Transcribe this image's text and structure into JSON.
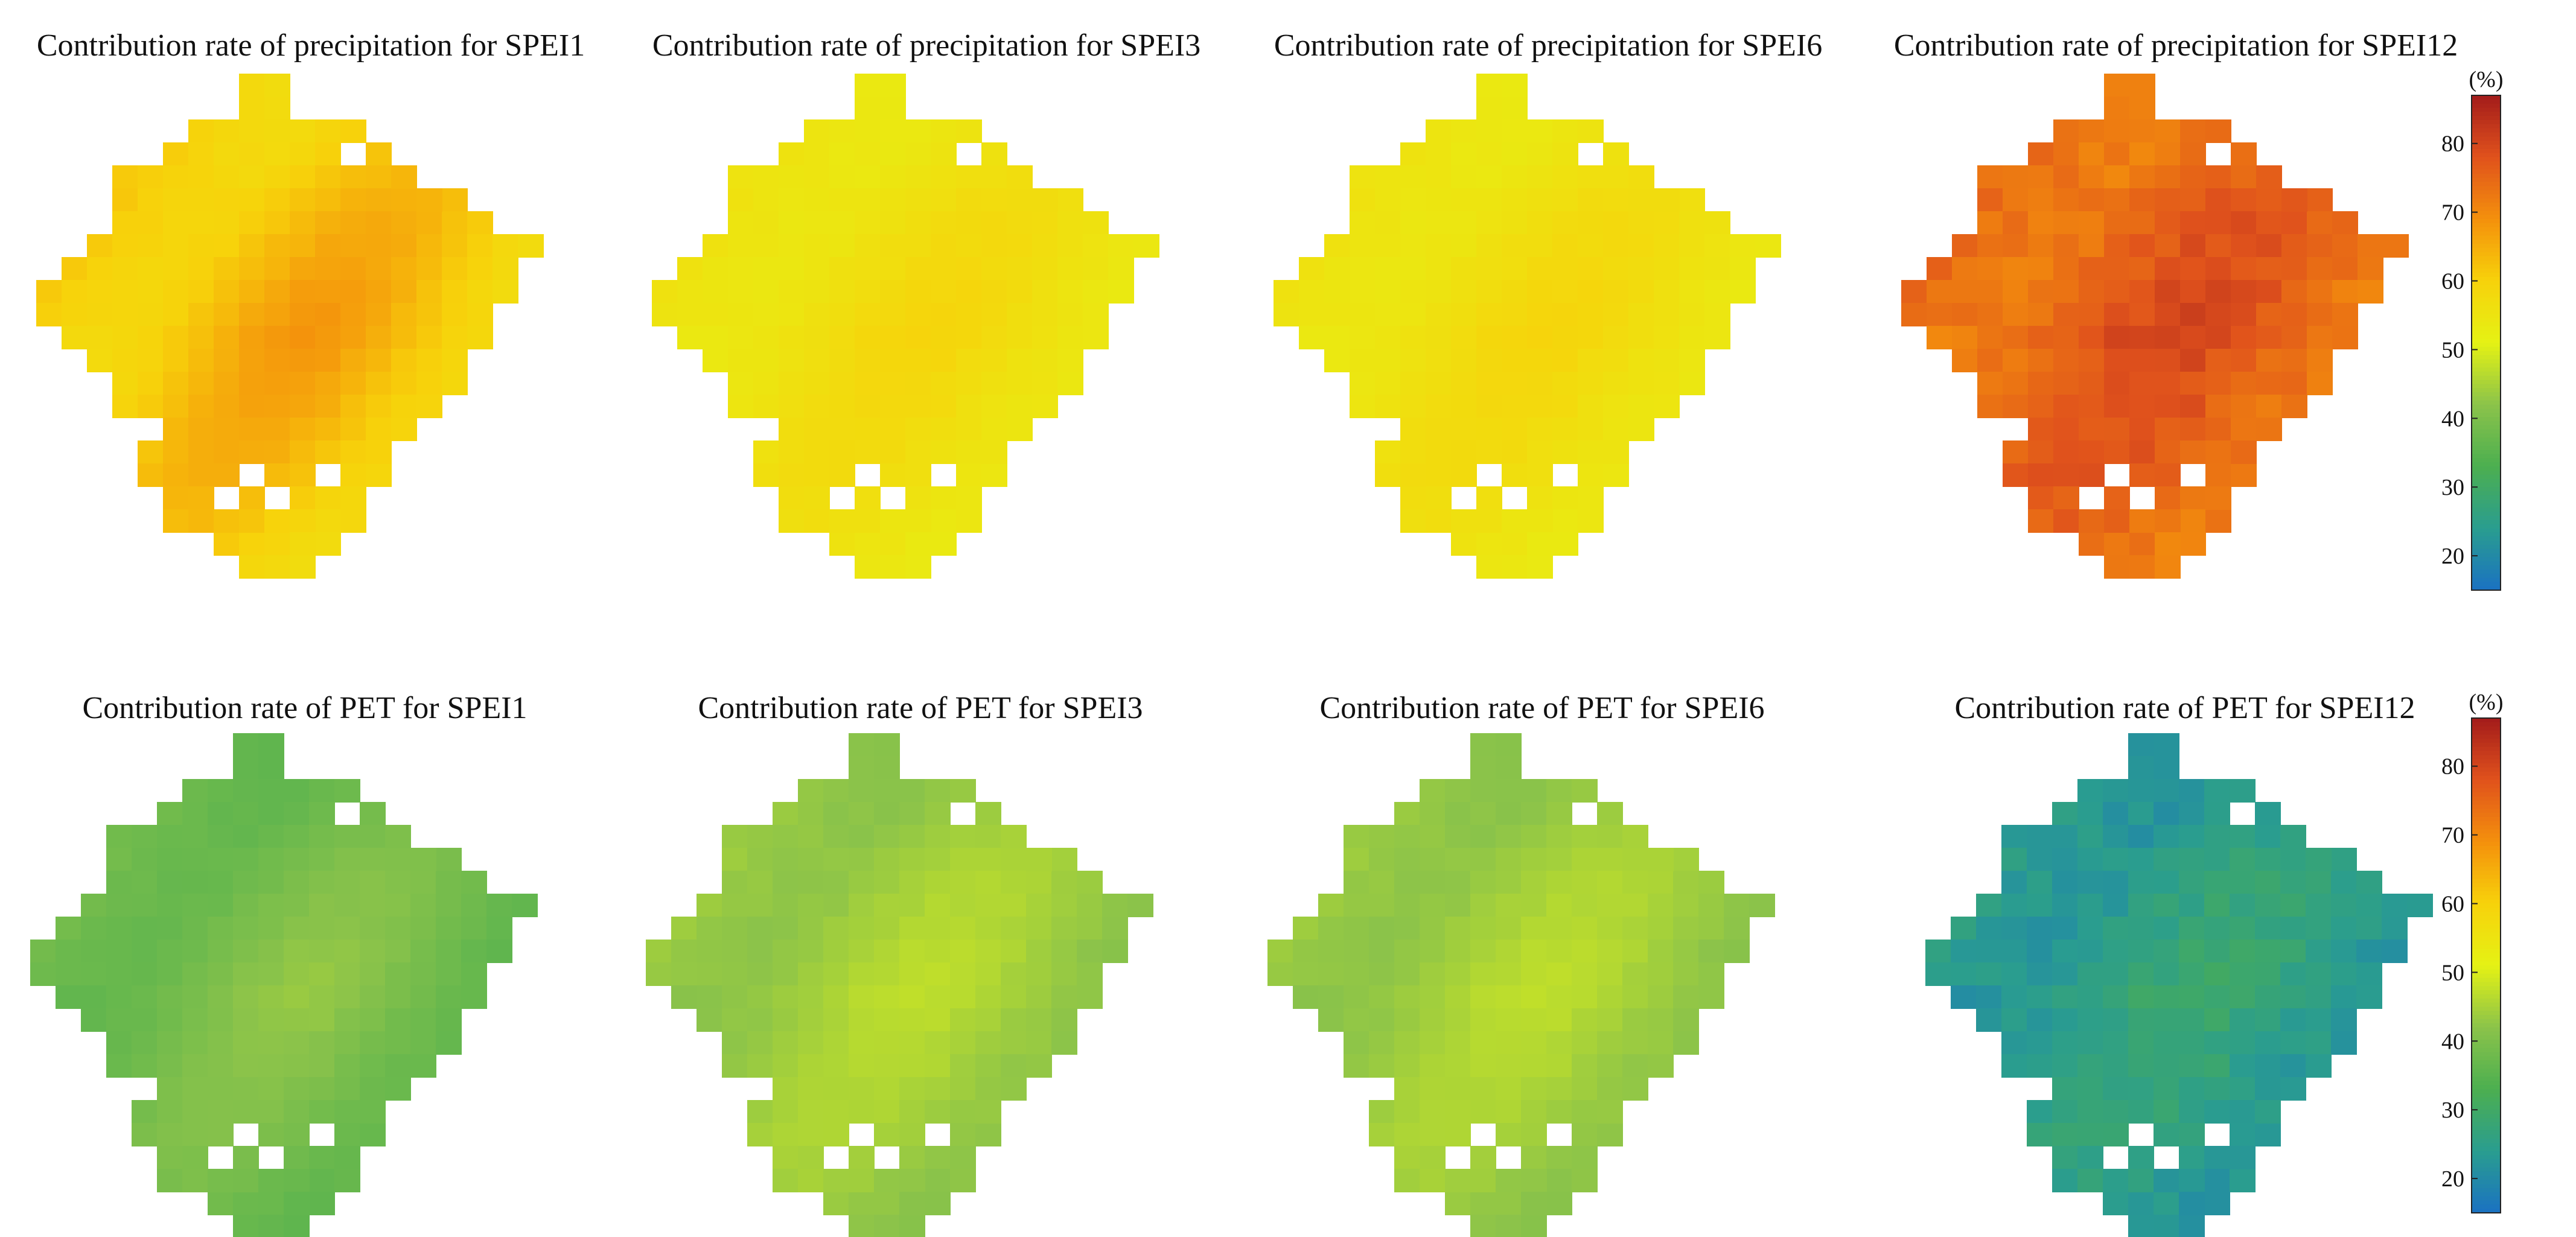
{
  "figure": {
    "rows": [
      {
        "variable": "precipitation",
        "panels": [
          {
            "title": "Contribution rate of precipitation for SPEI1",
            "scale": "SPEI1",
            "approx_mean": 62,
            "gradient": 6
          },
          {
            "title": "Contribution rate of precipitation for SPEI3",
            "scale": "SPEI3",
            "approx_mean": 56,
            "gradient": 3
          },
          {
            "title": "Contribution rate of precipitation for SPEI6",
            "scale": "SPEI6",
            "approx_mean": 56,
            "gradient": 3
          },
          {
            "title": "Contribution rate of precipitation for SPEI12",
            "scale": "SPEI12",
            "approx_mean": 75,
            "gradient": 5
          }
        ]
      },
      {
        "variable": "PET",
        "panels": [
          {
            "title": "Contribution rate of PET for SPEI1",
            "scale": "SPEI1",
            "approx_mean": 39,
            "gradient": 4
          },
          {
            "title": "Contribution rate of PET for SPEI3",
            "scale": "SPEI3",
            "approx_mean": 44,
            "gradient": 3
          },
          {
            "title": "Contribution rate of PET for SPEI6",
            "scale": "SPEI6",
            "approx_mean": 44,
            "gradient": 3
          },
          {
            "title": "Contribution rate of PET for SPEI12",
            "scale": "SPEI12",
            "approx_mean": 25,
            "gradient": 4
          }
        ]
      }
    ],
    "colorbar": {
      "unit": "(%)",
      "min": 15,
      "max": 87,
      "ticks": [
        20,
        30,
        40,
        50,
        60,
        70,
        80
      ],
      "colors": [
        "#1a72c2",
        "#2a9d8f",
        "#4caf50",
        "#8bc34a",
        "#e5f214",
        "#f7d20b",
        "#f4900c",
        "#e0521c",
        "#a31b1b"
      ]
    }
  }
}
